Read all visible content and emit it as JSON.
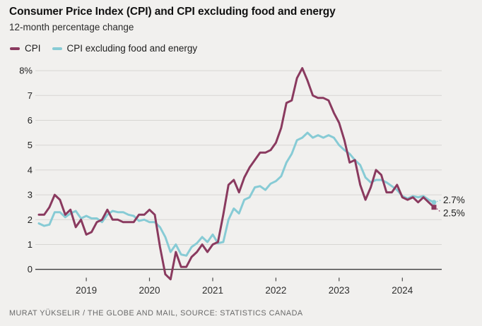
{
  "header": {
    "title": "Consumer Price Index (CPI) and CPI excluding food and energy",
    "subtitle": "12-month percentage change"
  },
  "legend": {
    "items": [
      {
        "label": "CPI",
        "color": "#8a3a5f",
        "icon": "line-swatch"
      },
      {
        "label": "CPI excluding food and energy",
        "color": "#87cbd5",
        "icon": "line-swatch"
      }
    ]
  },
  "chart_data": {
    "type": "line",
    "title": "Consumer Price Index (CPI) and CPI excluding food and energy",
    "subtitle": "12-month percentage change",
    "frequency": "monthly",
    "start_month": "2018-04",
    "end_month": "2024-07",
    "xlabel": "",
    "ylabel": "12-month percentage change",
    "ylim": [
      0,
      8.3
    ],
    "grid": "horizontal",
    "legend_position": "top-left",
    "x_tick_labels": [
      "2019",
      "2020",
      "2021",
      "2022",
      "2023",
      "2024"
    ],
    "y_tick_labels": [
      "0",
      "1",
      "2",
      "3",
      "4",
      "5",
      "6",
      "7",
      "8%"
    ],
    "series": [
      {
        "name": "CPI",
        "color": "#8a3a5f",
        "values": [
          2.2,
          2.2,
          2.5,
          3.0,
          2.8,
          2.2,
          2.4,
          1.7,
          2.0,
          1.4,
          1.5,
          1.9,
          2.0,
          2.4,
          2.0,
          2.0,
          1.9,
          1.9,
          1.9,
          2.2,
          2.2,
          2.4,
          2.2,
          0.9,
          -0.2,
          -0.4,
          0.7,
          0.1,
          0.1,
          0.5,
          0.7,
          1.0,
          0.7,
          1.0,
          1.1,
          2.2,
          3.4,
          3.6,
          3.1,
          3.7,
          4.1,
          4.4,
          4.7,
          4.7,
          4.8,
          5.1,
          5.7,
          6.7,
          6.8,
          7.7,
          8.1,
          7.6,
          7.0,
          6.9,
          6.9,
          6.8,
          6.3,
          5.9,
          5.2,
          4.3,
          4.4,
          3.4,
          2.8,
          3.3,
          4.0,
          3.8,
          3.1,
          3.1,
          3.4,
          2.9,
          2.8,
          2.9,
          2.7,
          2.9,
          2.7,
          2.5
        ]
      },
      {
        "name": "CPI excluding food and energy",
        "color": "#87cbd5",
        "values": [
          1.85,
          1.75,
          1.8,
          2.3,
          2.3,
          2.1,
          2.25,
          2.35,
          2.05,
          2.15,
          2.05,
          2.05,
          1.9,
          2.2,
          2.35,
          2.3,
          2.3,
          2.2,
          2.15,
          1.95,
          2.0,
          1.9,
          1.9,
          1.7,
          1.3,
          0.7,
          1.0,
          0.6,
          0.55,
          0.9,
          1.05,
          1.3,
          1.1,
          1.4,
          1.05,
          1.1,
          2.0,
          2.45,
          2.25,
          2.8,
          2.9,
          3.3,
          3.35,
          3.2,
          3.45,
          3.55,
          3.75,
          4.3,
          4.65,
          5.2,
          5.3,
          5.5,
          5.3,
          5.4,
          5.3,
          5.4,
          5.3,
          5.0,
          4.8,
          4.65,
          4.4,
          4.2,
          3.7,
          3.5,
          3.6,
          3.6,
          3.5,
          3.35,
          3.2,
          2.95,
          2.85,
          2.95,
          2.9,
          2.95,
          2.8,
          2.7
        ]
      }
    ],
    "end_labels": [
      {
        "series": "CPI excluding food and energy",
        "text": "2.7%",
        "value": 2.7
      },
      {
        "series": "CPI",
        "text": "2.5%",
        "value": 2.5
      }
    ]
  },
  "colors": {
    "background": "#f1f0ee",
    "gridline": "#d7d6d3",
    "zero_axis": "#3d3d3d",
    "axis_text": "#2e2e2e",
    "label_text": "#1d1d1d"
  },
  "footer": {
    "credit": "MURAT YÜKSELIR / THE GLOBE AND MAIL, SOURCE: STATISTICS CANADA"
  }
}
